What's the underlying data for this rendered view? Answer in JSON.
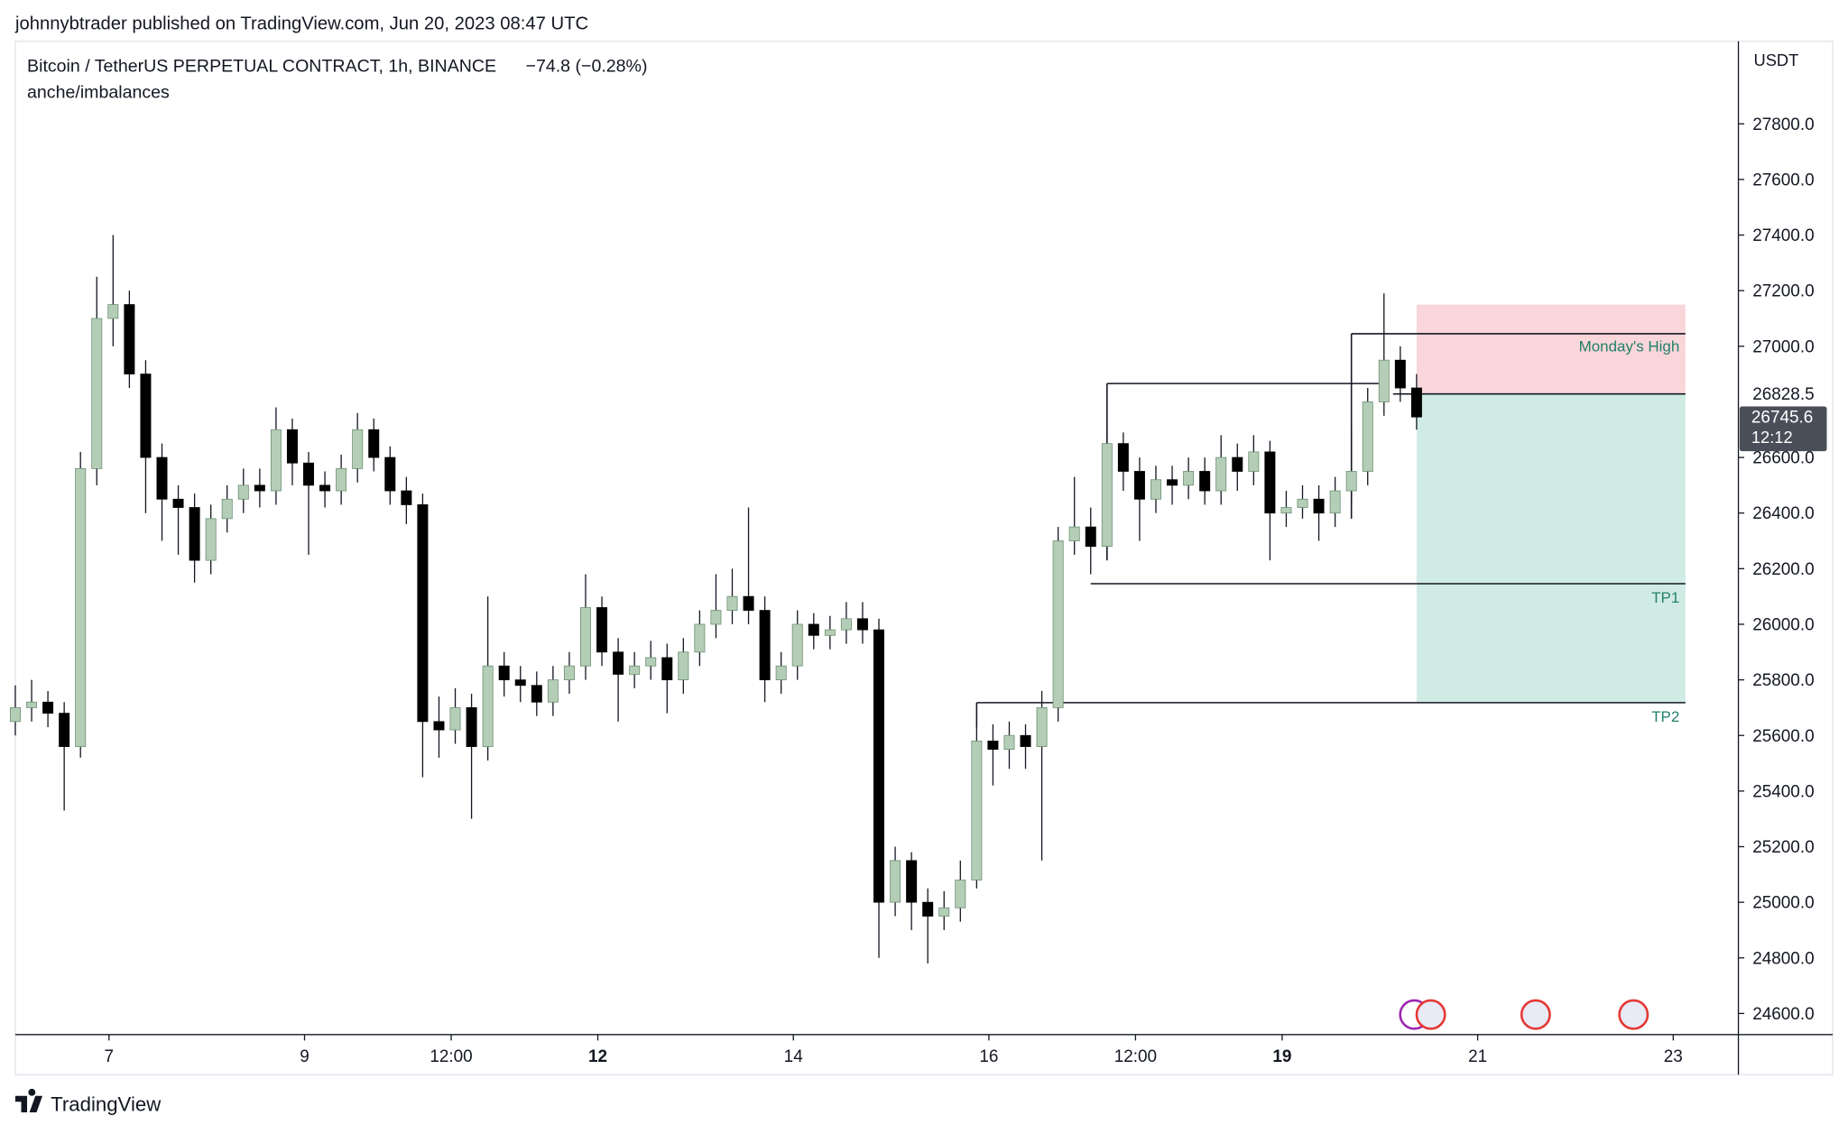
{
  "header": "johnnybtrader published on TradingView.com, Jun 20, 2023 08:47 UTC",
  "footer": "TradingView",
  "chart_data": {
    "type": "candlestick",
    "symbol": "Bitcoin / TetherUS PERPETUAL CONTRACT, 1h, BINANCE",
    "change": "−74.8 (−0.28%)",
    "indicator": "anche/imbalances",
    "currency": "USDT",
    "up_color": "#b4cdb7",
    "down_color": "#000000",
    "xlim": [
      -23,
      400
    ],
    "ylim": [
      24524,
      28097
    ],
    "xticks": [
      {
        "value": 0,
        "label": "7"
      },
      {
        "value": 48,
        "label": "9"
      },
      {
        "value": 84,
        "label": "12:00"
      },
      {
        "value": 120,
        "label": "12",
        "bold": true
      },
      {
        "value": 168,
        "label": "14"
      },
      {
        "value": 216,
        "label": "16"
      },
      {
        "value": 252,
        "label": "12:00"
      },
      {
        "value": 288,
        "label": "19",
        "bold": true
      },
      {
        "value": 336,
        "label": "21"
      },
      {
        "value": 384,
        "label": "23"
      }
    ],
    "yticks": [
      {
        "value": 24600,
        "label": "24600.0"
      },
      {
        "value": 24800,
        "label": "24800.0"
      },
      {
        "value": 25000,
        "label": "25000.0"
      },
      {
        "value": 25200,
        "label": "25200.0"
      },
      {
        "value": 25400,
        "label": "25400.0"
      },
      {
        "value": 25600,
        "label": "25600.0"
      },
      {
        "value": 25800,
        "label": "25800.0"
      },
      {
        "value": 26000,
        "label": "26000.0"
      },
      {
        "value": 26200,
        "label": "26200.0"
      },
      {
        "value": 26400,
        "label": "26400.0"
      },
      {
        "value": 26600,
        "label": "26600.0"
      },
      {
        "value": 27000,
        "label": "27000.0"
      },
      {
        "value": 27200,
        "label": "27200.0"
      },
      {
        "value": 27400,
        "label": "27400.0"
      },
      {
        "value": 27600,
        "label": "27600.0"
      },
      {
        "value": 27800,
        "label": "27800.0"
      }
    ],
    "x": [
      -23,
      -19,
      -15,
      -11,
      -7,
      -3,
      1,
      5,
      9,
      13,
      17,
      21,
      25,
      29,
      33,
      37,
      41,
      45,
      49,
      53,
      57,
      61,
      65,
      69,
      73,
      77,
      81,
      85,
      89,
      93,
      97,
      101,
      105,
      109,
      113,
      117,
      121,
      125,
      129,
      133,
      137,
      141,
      145,
      149,
      153,
      157,
      161,
      165,
      169,
      173,
      177,
      181,
      185,
      189,
      193,
      197,
      201,
      205,
      209,
      213,
      217,
      221,
      225,
      229,
      233,
      237,
      241,
      245,
      249,
      253,
      257,
      261,
      265,
      269,
      273,
      277,
      281,
      285,
      289,
      293,
      297,
      301,
      305,
      309,
      313,
      317,
      321
    ],
    "open": [
      25650,
      25700,
      25720,
      25680,
      25560,
      26560,
      27100,
      27150,
      26900,
      26600,
      26450,
      26420,
      26230,
      26380,
      26450,
      26500,
      26480,
      26700,
      26580,
      26500,
      26480,
      26560,
      26700,
      26600,
      26480,
      26430,
      25650,
      25620,
      25700,
      25560,
      25850,
      25800,
      25780,
      25720,
      25800,
      25850,
      26060,
      25900,
      25820,
      25850,
      25880,
      25800,
      25900,
      26000,
      26050,
      26100,
      26050,
      25800,
      25850,
      26000,
      25960,
      25980,
      26020,
      25980,
      25000,
      25150,
      25000,
      24950,
      24980,
      25080,
      25580,
      25550,
      25600,
      25560,
      25700,
      26300,
      26350,
      26280,
      26650,
      26550,
      26450,
      26520,
      26500,
      26550,
      26480,
      26600,
      26550,
      26620,
      26400,
      26420,
      26450,
      26400,
      26480,
      26550,
      26800,
      26950,
      26850
    ],
    "high": [
      25780,
      25800,
      25760,
      25720,
      26620,
      27250,
      27400,
      27200,
      26950,
      26650,
      26500,
      26470,
      26430,
      26500,
      26560,
      26560,
      26780,
      26740,
      26620,
      26550,
      26610,
      26760,
      26740,
      26640,
      26530,
      26470,
      25740,
      25770,
      25750,
      26100,
      25900,
      25850,
      25830,
      25850,
      25900,
      26180,
      26100,
      25950,
      25900,
      25940,
      25930,
      25950,
      26050,
      26180,
      26200,
      26420,
      26100,
      25900,
      26050,
      26040,
      26030,
      26080,
      26080,
      26020,
      25200,
      25180,
      25050,
      25040,
      25150,
      25640,
      25640,
      25650,
      25640,
      25760,
      26350,
      26530,
      26420,
      26700,
      26690,
      26600,
      26570,
      26570,
      26600,
      26600,
      26680,
      26650,
      26680,
      26660,
      26480,
      26500,
      26500,
      26530,
      26700,
      26850,
      27190,
      27000,
      26900
    ],
    "low": [
      25600,
      25650,
      25630,
      25330,
      25520,
      26500,
      27000,
      26850,
      26400,
      26300,
      26250,
      26150,
      26180,
      26330,
      26400,
      26420,
      26430,
      26500,
      26250,
      26420,
      26430,
      26510,
      26550,
      26430,
      26360,
      25450,
      25520,
      25570,
      25300,
      25510,
      25740,
      25720,
      25670,
      25670,
      25750,
      25800,
      25850,
      25650,
      25770,
      25800,
      25680,
      25750,
      25850,
      25950,
      26000,
      26000,
      25720,
      25750,
      25800,
      25910,
      25910,
      25930,
      25930,
      24800,
      24950,
      24900,
      24780,
      24900,
      24930,
      25050,
      25420,
      25480,
      25480,
      25150,
      25650,
      26250,
      26180,
      26230,
      26480,
      26300,
      26400,
      26430,
      26450,
      26430,
      26430,
      26480,
      26500,
      26230,
      26350,
      26380,
      26300,
      26350,
      26430,
      26500,
      26750,
      26800,
      26700
    ],
    "close": [
      25700,
      25720,
      25680,
      25560,
      26560,
      27100,
      27150,
      26900,
      26600,
      26450,
      26420,
      26230,
      26380,
      26450,
      26500,
      26480,
      26700,
      26580,
      26500,
      26480,
      26560,
      26700,
      26600,
      26480,
      26430,
      25650,
      25620,
      25700,
      25560,
      25850,
      25800,
      25780,
      25720,
      25800,
      25850,
      26060,
      25900,
      25820,
      25850,
      25880,
      25800,
      25900,
      26000,
      26050,
      26100,
      26050,
      25800,
      25850,
      26000,
      25960,
      25980,
      26020,
      25980,
      25000,
      25150,
      25000,
      24950,
      24980,
      25080,
      25580,
      25550,
      25600,
      25560,
      25700,
      26300,
      26350,
      26280,
      26650,
      26550,
      26450,
      26520,
      26500,
      26550,
      26480,
      26600,
      26550,
      26620,
      26400,
      26420,
      26450,
      26400,
      26480,
      26550,
      26800,
      26950,
      26850,
      26745.6
    ],
    "position": {
      "entry": 26828.5,
      "stop": 27150,
      "target": 25718,
      "x": [
        321,
        387
      ],
      "stop_color": "#f9d6d9",
      "target_color": "#d0ebe4"
    },
    "levels": [
      {
        "label": "Monday's High",
        "price": 27045,
        "x": [
          305,
          387
        ],
        "base": 26380
      },
      {
        "price": 26866,
        "x": [
          245,
          312
        ],
        "base": 26230
      },
      {
        "label": "TP1",
        "price": 26146,
        "x": [
          241,
          387
        ]
      },
      {
        "label": "TP2",
        "price": 25718,
        "x": [
          213,
          387
        ],
        "base": 25630
      }
    ],
    "last_price": 26745.6,
    "countdown": "12:12"
  }
}
